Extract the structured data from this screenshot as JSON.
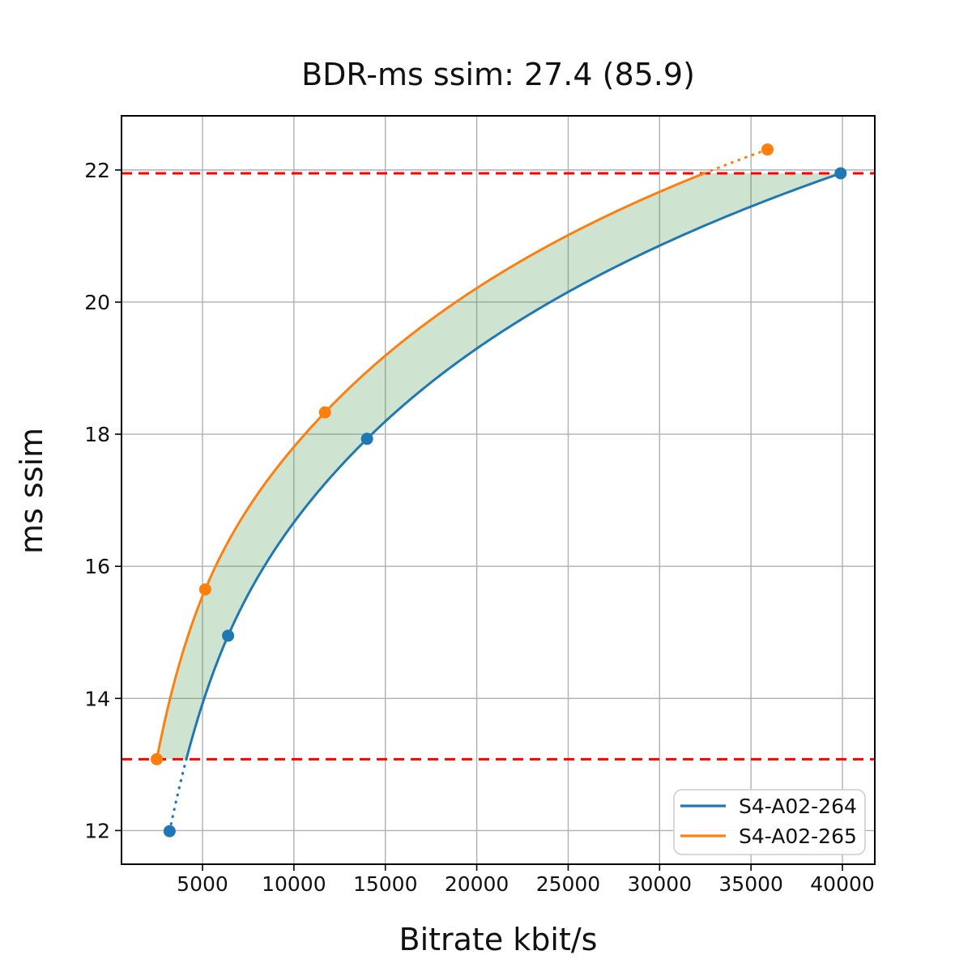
{
  "title": "BDR-ms ssim: 27.4 (85.9)",
  "chart_data": {
    "type": "line",
    "title": "BDR-ms ssim: 27.4 (85.9)",
    "xlabel": "Bitrate kbit/s",
    "ylabel": "ms ssim",
    "xlim": [
      570,
      41770
    ],
    "ylim": [
      11.49,
      22.82
    ],
    "x_ticks": [
      5000,
      10000,
      15000,
      20000,
      25000,
      30000,
      35000,
      40000
    ],
    "y_ticks": [
      12,
      14,
      16,
      18,
      20,
      22
    ],
    "grid": true,
    "grid_color": "#b0b0b0",
    "spine_color": "#000000",
    "background": "#ffffff",
    "legend_position": "lower right",
    "interpolation": "pchip-log-x",
    "series": [
      {
        "name": "S4-A02-264",
        "color": "#1f77b4",
        "points": [
          [
            3200,
            11.99
          ],
          [
            6400,
            14.95
          ],
          [
            14000,
            17.93
          ],
          [
            39900,
            21.95
          ]
        ]
      },
      {
        "name": "S4-A02-265",
        "color": "#ff7f0e",
        "points": [
          [
            2500,
            13.08
          ],
          [
            5150,
            15.65
          ],
          [
            11700,
            18.33
          ],
          [
            35900,
            22.31
          ]
        ]
      }
    ],
    "ref_lines": {
      "color": "#ff0000",
      "style": "dashed",
      "y_values": [
        13.08,
        21.95
      ]
    },
    "fill_between": {
      "color": "#388e3c",
      "opacity": 0.24,
      "y_range": [
        13.08,
        21.95
      ]
    }
  }
}
